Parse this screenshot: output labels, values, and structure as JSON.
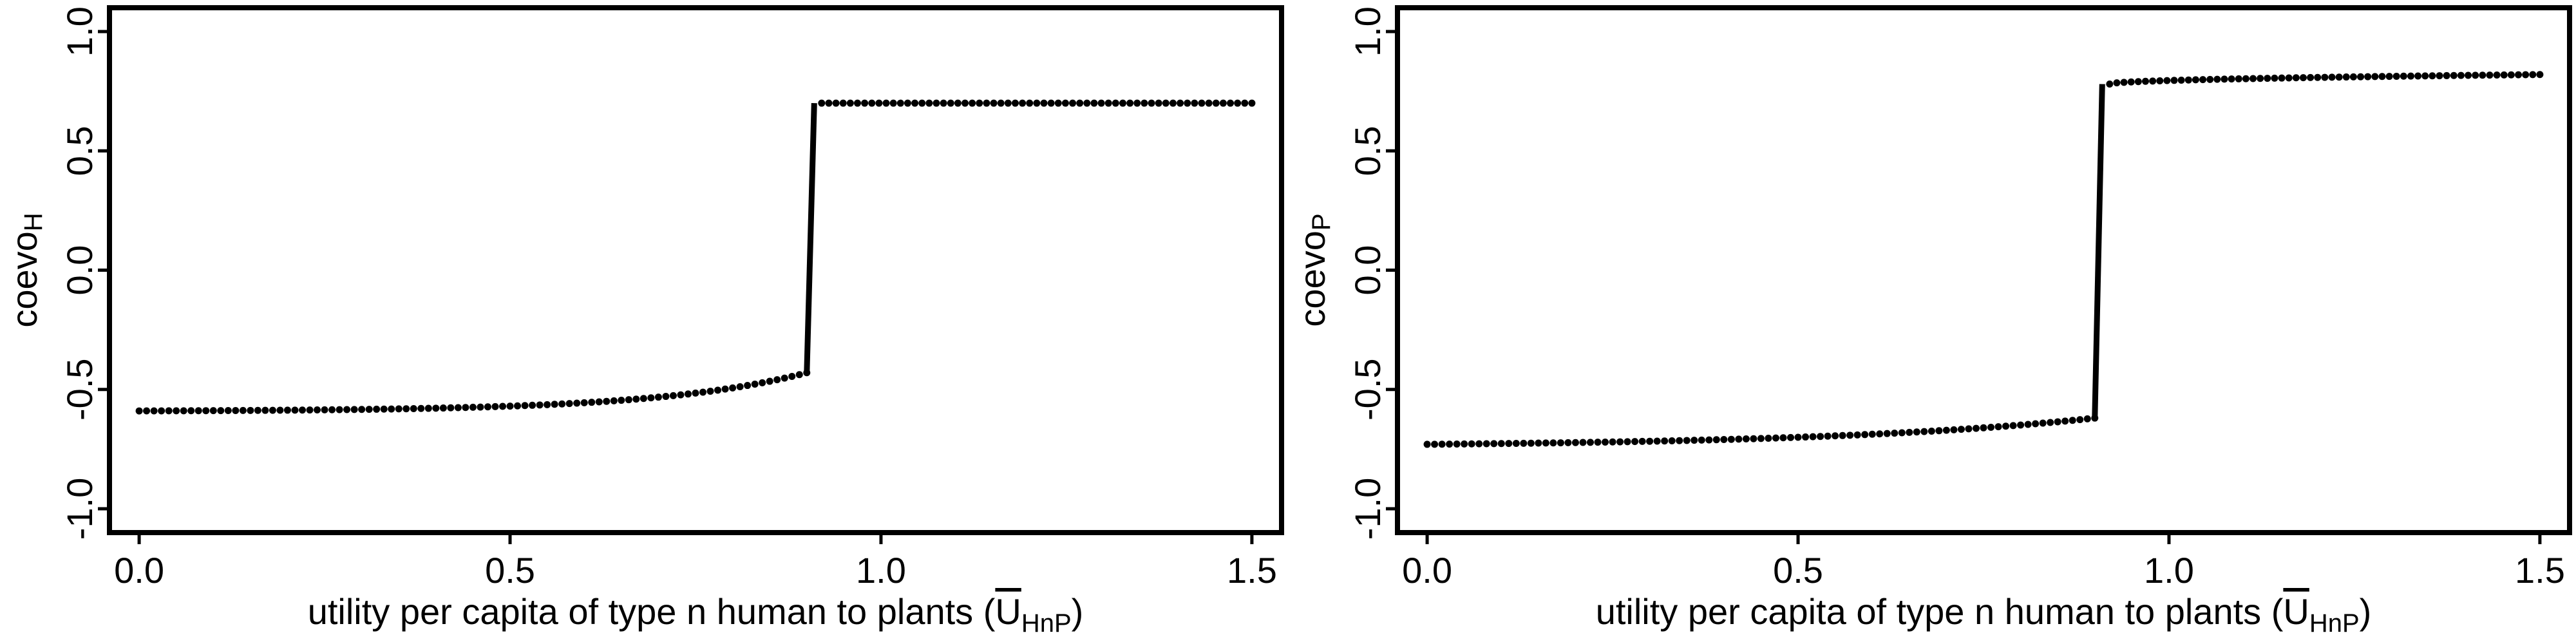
{
  "chart_data": [
    {
      "type": "scatter",
      "panel": "left",
      "xlabel_text": "utility per capita of type n human to plants (",
      "xlabel_symbol": "U",
      "xlabel_subscript": "HnP",
      "xlabel_close": ")",
      "ylabel_text": "coevo",
      "ylabel_subscript": "H",
      "xlim": [
        -0.04,
        1.54
      ],
      "ylim": [
        -1.1,
        1.1
      ],
      "x_ticks": [
        0.0,
        0.5,
        1.0,
        1.5
      ],
      "x_tick_labels": [
        "0.0",
        "0.5",
        "1.0",
        "1.5"
      ],
      "y_ticks": [
        -1.0,
        -0.5,
        0.0,
        0.5,
        1.0
      ],
      "y_tick_labels": [
        "-1.0",
        "-0.5",
        "0.0",
        "0.5",
        "1.0"
      ],
      "grid": false,
      "series": [
        {
          "color": "#000000",
          "low_branch": {
            "x_start": 0.0,
            "x_end": 0.9,
            "y_start": -0.59,
            "y_end": -0.43,
            "curvature": 4.5
          },
          "high_branch": {
            "x_start": 0.92,
            "x_end": 1.5,
            "y_start": 0.7,
            "y_end": 0.7
          },
          "jump_x": [
            0.9,
            0.91
          ],
          "jump_y": [
            -0.43,
            0.7
          ]
        }
      ]
    },
    {
      "type": "scatter",
      "panel": "right",
      "xlabel_text": "utility per capita of type n human to plants (",
      "xlabel_symbol": "U",
      "xlabel_subscript": "HnP",
      "xlabel_close": ")",
      "ylabel_text": "coevo",
      "ylabel_subscript": "P",
      "xlim": [
        -0.04,
        1.54
      ],
      "ylim": [
        -1.1,
        1.1
      ],
      "x_ticks": [
        0.0,
        0.5,
        1.0,
        1.5
      ],
      "x_tick_labels": [
        "0.0",
        "0.5",
        "1.0",
        "1.5"
      ],
      "y_ticks": [
        -1.0,
        -0.5,
        0.0,
        0.5,
        1.0
      ],
      "y_tick_labels": [
        "-1.0",
        "-0.5",
        "0.0",
        "0.5",
        "1.0"
      ],
      "grid": false,
      "series": [
        {
          "color": "#000000",
          "low_branch": {
            "x_start": 0.0,
            "x_end": 0.9,
            "y_start": -0.73,
            "y_end": -0.62,
            "curvature": 2.5
          },
          "high_branch": {
            "x_start": 0.92,
            "x_end": 1.5,
            "y_start": 0.78,
            "y_end": 0.82
          },
          "jump_x": [
            0.9,
            0.91
          ],
          "jump_y": [
            -0.62,
            0.78
          ]
        }
      ]
    }
  ]
}
